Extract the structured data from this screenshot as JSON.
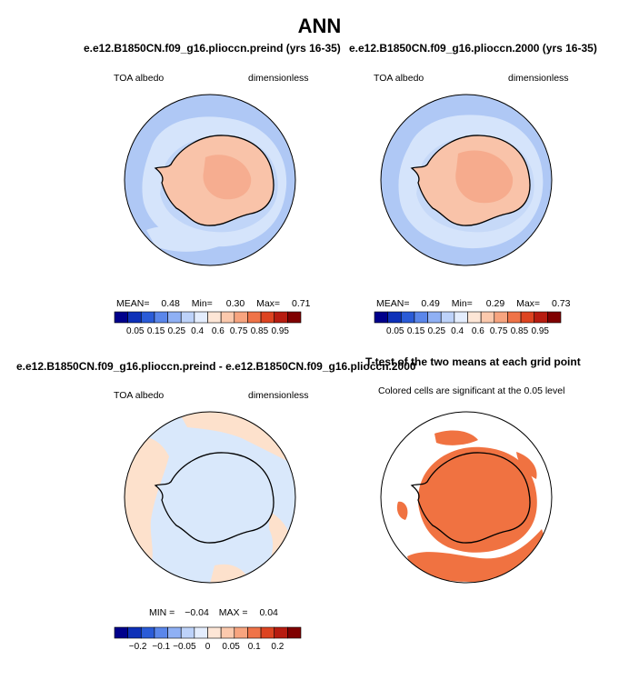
{
  "page": {
    "title": "ANN"
  },
  "colors": {
    "ocean_low": "#afc8f5",
    "ice_pale": "#d5e4fb",
    "land_salmon": "#f9c3a9",
    "land_deep": "#f5a88a",
    "diff_blue": "#d9e8fb",
    "diff_peach": "#fde1cc",
    "signif": "#f07241",
    "coast": "#000000"
  },
  "colorbar_albedo": {
    "colors": [
      "#00008b",
      "#0d30b8",
      "#2a5bd7",
      "#5a86ea",
      "#8fb0f4",
      "#bdd2f9",
      "#e4edfd",
      "#fde6d6",
      "#fbc9ad",
      "#f7a47f",
      "#ef7348",
      "#dd4421",
      "#b71c10",
      "#7f0000"
    ],
    "labels": [
      "0.05",
      "0.15",
      "0.25",
      "0.4",
      "0.6",
      "0.75",
      "0.85",
      "0.95"
    ]
  },
  "colorbar_diff": {
    "colors": [
      "#00008b",
      "#0d30b8",
      "#2a5bd7",
      "#5a86ea",
      "#8fb0f4",
      "#bdd2f9",
      "#e4edfd",
      "#fde6d6",
      "#fbc9ad",
      "#f7a47f",
      "#ef7348",
      "#dd4421",
      "#b71c10",
      "#7f0000"
    ],
    "labels": [
      "−0.2",
      "−0.1",
      "−0.05",
      "0",
      "0.05",
      "0.1",
      "0.2"
    ]
  },
  "panels": {
    "top_left": {
      "title": "e.e12.B1850CN.f09_g16.pliocсn.preind (yrs 16-35)",
      "variable": "TOA albedo",
      "units": "dimensionless",
      "mean_label": "MEAN=",
      "mean": "0.48",
      "min_label": "Min=",
      "min": "0.30",
      "max_label": "Max=",
      "max": "0.71"
    },
    "top_right": {
      "title": "e.e12.B1850CN.f09_g16.pliocсn.2000 (yrs 16-35)",
      "variable": "TOA albedo",
      "units": "dimensionless",
      "mean_label": "MEAN=",
      "mean": "0.49",
      "min_label": "Min=",
      "min": "0.29",
      "max_label": "Max=",
      "max": "0.73"
    },
    "bottom_left": {
      "title": "e.e12.B1850CN.f09_g16.pliocсn.preind - e.e12.B1850CN.f09_g16.pliocсn.2000",
      "variable": "TOA albedo",
      "units": "dimensionless",
      "min_label": "MIN =",
      "min": "−0.04",
      "max_label": "MAX =",
      "max": "0.04"
    },
    "bottom_right": {
      "title": "T-test of the two means at each grid point",
      "subtitle": "Colored cells are significant at the 0.05 level"
    }
  }
}
